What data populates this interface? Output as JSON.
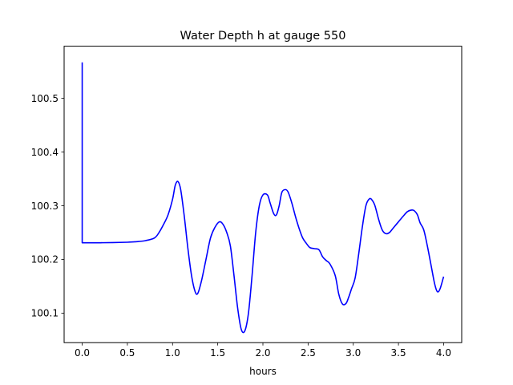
{
  "chart_data": {
    "type": "line",
    "title": "Water Depth h at gauge 550",
    "xlabel": "hours",
    "ylabel": "",
    "xlim": [
      -0.2,
      4.2
    ],
    "ylim": [
      100.045,
      100.597
    ],
    "xticks": [
      0.0,
      0.5,
      1.0,
      1.5,
      2.0,
      2.5,
      3.0,
      3.5,
      4.0
    ],
    "xtick_labels": [
      "0.0",
      "0.5",
      "1.0",
      "1.5",
      "2.0",
      "2.5",
      "3.0",
      "3.5",
      "4.0"
    ],
    "yticks": [
      100.1,
      100.2,
      100.3,
      100.4,
      100.5
    ],
    "ytick_labels": [
      "100.1",
      "100.2",
      "100.3",
      "100.4",
      "100.5"
    ],
    "grid": false,
    "series": [
      {
        "color": "#0000ff",
        "x": [
          0.0,
          0.0,
          0.005,
          0.2,
          0.5,
          0.6,
          0.7,
          0.8,
          0.85,
          0.9,
          0.95,
          1.0,
          1.03,
          1.06,
          1.09,
          1.13,
          1.17,
          1.21,
          1.25,
          1.28,
          1.32,
          1.37,
          1.42,
          1.47,
          1.52,
          1.56,
          1.6,
          1.64,
          1.68,
          1.72,
          1.76,
          1.8,
          1.84,
          1.88,
          1.92,
          1.96,
          2.0,
          2.05,
          2.08,
          2.12,
          2.15,
          2.18,
          2.21,
          2.25,
          2.28,
          2.32,
          2.36,
          2.4,
          2.44,
          2.48,
          2.52,
          2.57,
          2.62,
          2.66,
          2.7,
          2.74,
          2.8,
          2.84,
          2.88,
          2.92,
          2.95,
          2.98,
          3.02,
          3.06,
          3.1,
          3.14,
          3.18,
          3.21,
          3.24,
          3.28,
          3.32,
          3.36,
          3.4,
          3.44,
          3.5,
          3.55,
          3.6,
          3.65,
          3.68,
          3.71,
          3.74,
          3.78,
          3.82,
          3.86,
          3.9,
          3.93,
          3.96,
          4.0
        ],
        "y": [
          100.567,
          100.231,
          100.231,
          100.231,
          100.232,
          100.233,
          100.235,
          100.24,
          100.25,
          100.265,
          100.283,
          100.312,
          100.338,
          100.345,
          100.33,
          100.28,
          100.22,
          100.17,
          100.14,
          100.137,
          100.16,
          100.2,
          100.24,
          100.26,
          100.27,
          100.265,
          100.25,
          100.225,
          100.17,
          100.11,
          100.07,
          100.067,
          100.1,
          100.17,
          100.25,
          100.3,
          100.32,
          100.32,
          100.305,
          100.285,
          100.283,
          100.3,
          100.325,
          100.33,
          100.325,
          100.305,
          100.28,
          100.258,
          100.24,
          100.23,
          100.222,
          100.22,
          100.218,
          100.205,
          100.198,
          100.192,
          100.17,
          100.135,
          100.117,
          100.118,
          100.13,
          100.145,
          100.165,
          100.21,
          100.26,
          100.3,
          100.313,
          100.31,
          100.3,
          100.275,
          100.255,
          100.248,
          100.25,
          100.258,
          100.27,
          100.28,
          100.289,
          100.292,
          100.29,
          100.283,
          100.268,
          100.255,
          100.225,
          100.19,
          100.155,
          100.14,
          100.145,
          100.168
        ]
      }
    ]
  }
}
